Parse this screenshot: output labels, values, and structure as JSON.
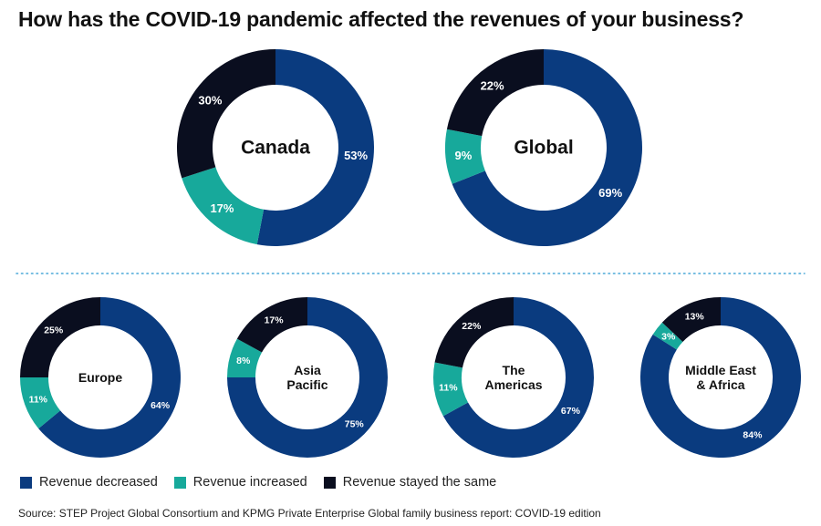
{
  "title": "How has the COVID-19 pandemic affected the revenues of your business?",
  "source": "Source: STEP Project Global Consortium and KPMG Private Enterprise Global family business report: COVID-19 edition",
  "colors": {
    "decreased": "#0a3b7f",
    "increased": "#17a99b",
    "same": "#0a0e1f"
  },
  "legend": [
    {
      "key": "decreased",
      "label": "Revenue decreased"
    },
    {
      "key": "increased",
      "label": "Revenue increased"
    },
    {
      "key": "same",
      "label": "Revenue stayed the same"
    }
  ],
  "chart_data": [
    {
      "type": "pie",
      "variant": "donut",
      "center_label": [
        "Canada"
      ],
      "categories": [
        "Revenue decreased",
        "Revenue increased",
        "Revenue stayed the same"
      ],
      "values": [
        53,
        17,
        30
      ],
      "labels": [
        "53%",
        "17%",
        "30%"
      ]
    },
    {
      "type": "pie",
      "variant": "donut",
      "center_label": [
        "Global"
      ],
      "categories": [
        "Revenue decreased",
        "Revenue increased",
        "Revenue stayed the same"
      ],
      "values": [
        69,
        9,
        22
      ],
      "labels": [
        "69%",
        "9%",
        "22%"
      ]
    },
    {
      "type": "pie",
      "variant": "donut",
      "center_label": [
        "Europe"
      ],
      "categories": [
        "Revenue decreased",
        "Revenue increased",
        "Revenue stayed the same"
      ],
      "values": [
        64,
        11,
        25
      ],
      "labels": [
        "64%",
        "11%",
        "25%"
      ]
    },
    {
      "type": "pie",
      "variant": "donut",
      "center_label": [
        "Asia",
        "Pacific"
      ],
      "categories": [
        "Revenue decreased",
        "Revenue increased",
        "Revenue stayed the same"
      ],
      "values": [
        75,
        8,
        17
      ],
      "labels": [
        "75%",
        "8%",
        "17%"
      ]
    },
    {
      "type": "pie",
      "variant": "donut",
      "center_label": [
        "The",
        "Americas"
      ],
      "categories": [
        "Revenue decreased",
        "Revenue increased",
        "Revenue stayed the same"
      ],
      "values": [
        67,
        11,
        22
      ],
      "labels": [
        "67%",
        "11%",
        "22%"
      ]
    },
    {
      "type": "pie",
      "variant": "donut",
      "center_label": [
        "Middle East",
        "& Africa"
      ],
      "categories": [
        "Revenue decreased",
        "Revenue increased",
        "Revenue stayed the same"
      ],
      "values": [
        84,
        3,
        13
      ],
      "labels": [
        "84%",
        "3%",
        "13%"
      ]
    }
  ]
}
